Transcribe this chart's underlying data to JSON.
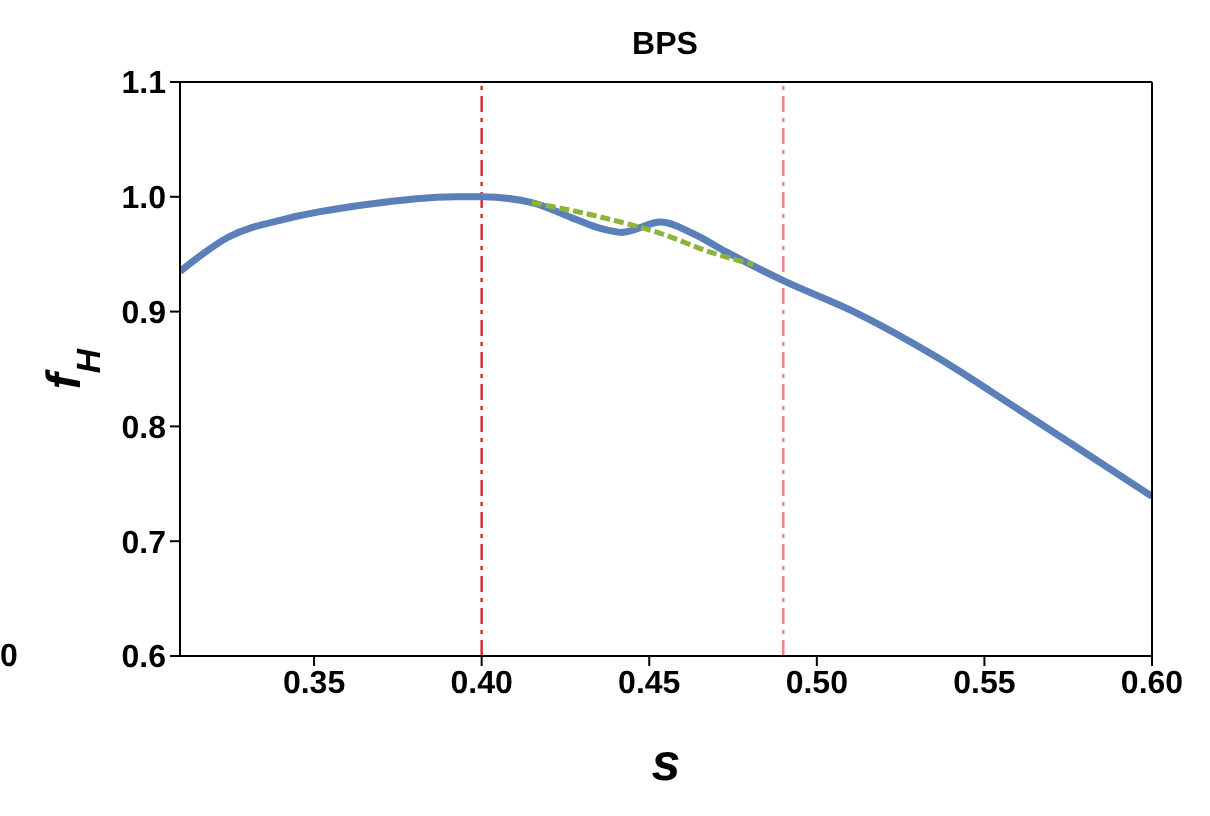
{
  "chart_data": {
    "type": "line",
    "title": "BPS",
    "xlabel": "s",
    "ylabel": "f$_{H}$",
    "annotations": [
      "0"
    ],
    "xlim": [
      0.31,
      0.6
    ],
    "xticks": [
      0.35,
      {
        "value": 0.4,
        "label": "0.40"
      },
      0.45,
      {
        "value": 0.5,
        "label": "0.50"
      },
      0.55,
      {
        "value": 0.6,
        "label": "0.60"
      }
    ],
    "ylim": [
      0.6,
      1.1
    ],
    "yticks": [
      0.6,
      0.7,
      0.8,
      0.9,
      {
        "value": 1,
        "label": "1.0"
      },
      1.1
    ],
    "marker": "none",
    "ref_lines": [
      {
        "axis": "x",
        "value": 0.4,
        "color": "#d62728",
        "line_style": "dashdot"
      },
      {
        "axis": "x",
        "value": 0.49,
        "color": "#f08080",
        "line_style": "dashdot"
      }
    ],
    "series": [
      {
        "color": "#5b7fb8",
        "line_style": "solid",
        "x": [
          0.31,
          0.3245,
          0.342,
          0.365,
          0.392,
          0.4,
          0.415,
          0.4275,
          0.436,
          0.4417,
          0.4535,
          0.463,
          0.473,
          0.49,
          0.511,
          0.536,
          0.559,
          0.578,
          0.6
        ],
        "values": [
          0.935,
          0.965,
          0.981,
          0.993,
          1.0,
          1.0,
          0.995,
          0.981,
          0.972,
          0.969,
          0.978,
          0.968,
          0.952,
          0.927,
          0.9,
          0.86,
          0.817,
          0.781,
          0.739
        ]
      },
      {
        "color": "#8db33a",
        "line_style": "dashed",
        "x": [
          0.415,
          0.436,
          0.4535,
          0.468,
          0.481
        ],
        "values": [
          0.995,
          0.982,
          0.968,
          0.952,
          0.941
        ]
      }
    ]
  }
}
